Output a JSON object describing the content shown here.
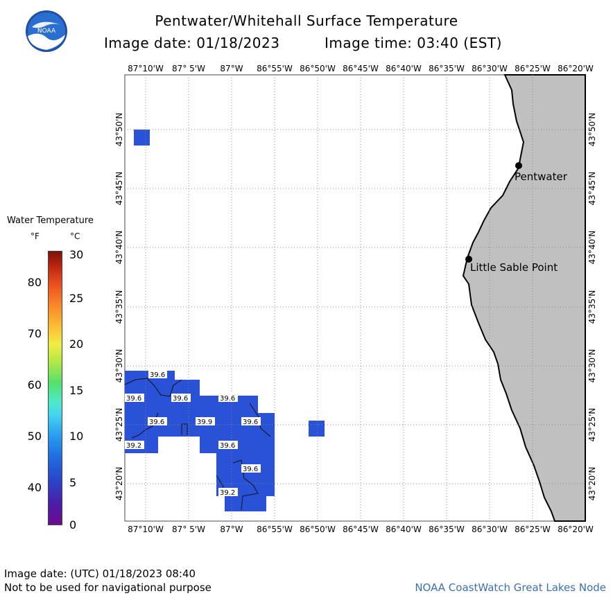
{
  "header": {
    "title": "Pentwater/Whitehall Surface Temperature",
    "image_date": "Image date: 01/18/2023",
    "image_time": "Image time: 03:40 (EST)"
  },
  "logo": {
    "text": "NOAA",
    "icon": "noaa-logo"
  },
  "legend": {
    "title": "Water Temperature",
    "unit_f": "°F",
    "unit_c": "°C",
    "f_ticks": [
      "80",
      "70",
      "60",
      "50",
      "40"
    ],
    "c_ticks": [
      "30",
      "25",
      "20",
      "15",
      "10",
      "5",
      "0"
    ],
    "colors": {
      "cold": "#6b0a8f",
      "mid": "#45d3f0",
      "warm": "#f2ec46",
      "hot": "#7a1208"
    }
  },
  "map": {
    "lon_labels": [
      "87°10'W",
      "87° 5'W",
      "87°W",
      "86°55'W",
      "86°50'W",
      "86°45'W",
      "86°40'W",
      "86°35'W",
      "86°30'W",
      "86°25'W",
      "86°20'W"
    ],
    "lat_labels": [
      "43°50'N",
      "43°45'N",
      "43°40'N",
      "43°35'N",
      "43°30'N",
      "43°25'N",
      "43°20'N"
    ],
    "places": [
      {
        "name": "Pentwater"
      },
      {
        "name": "Little Sable Point"
      }
    ],
    "temp_labels": [
      "39.6",
      "39.6",
      "39.6",
      "39.6",
      "39.6",
      "39.9",
      "39.6",
      "39.2",
      "39.6",
      "39.6",
      "39.2"
    ],
    "colors": {
      "water_temp": "#2a52d6",
      "land": "#c0c0c0",
      "grid": "#888888"
    }
  },
  "footer": {
    "utc_date": "Image date: (UTC) 01/18/2023  08:40",
    "disclaimer": "Not to be used for navigational purpose",
    "credit": "NOAA CoastWatch Great Lakes Node"
  }
}
